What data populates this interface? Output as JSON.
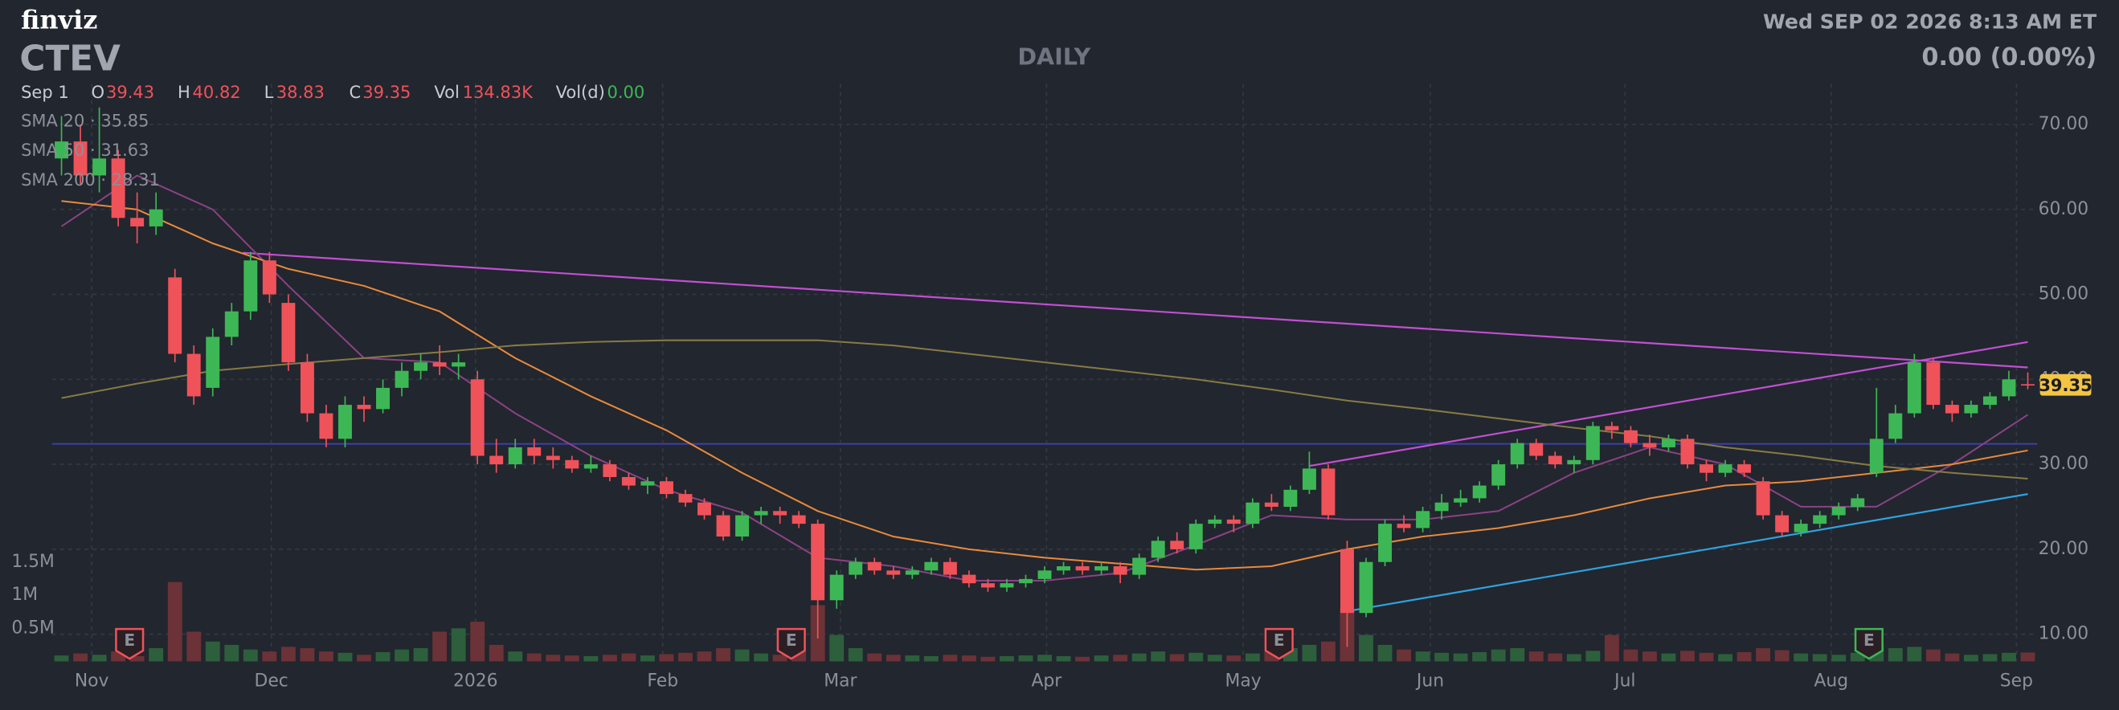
{
  "chart_data": {
    "type": "candlestick",
    "logo": "finviz",
    "title": "CTEV",
    "subtitle": "DAILY",
    "datetime": "Wed SEP 02 2026 8:13 AM ET",
    "change": "0.00 (0.00%)",
    "legend": {
      "date": "Sep 1",
      "labels": [
        "O",
        "H",
        "L",
        "C"
      ],
      "vol_label": "Vol",
      "vol_value": "134.83K",
      "vold_label": "Vol(d)",
      "vold_value": "0.00",
      "separator": "·"
    },
    "up_color": "#3db755",
    "down_color": "#f0525a",
    "volume_colors": {
      "up": "#2d5f3d",
      "down": "#6b3237"
    },
    "xlim": [
      -0.5,
      104.5
    ],
    "xticks": [
      {
        "value": 1.6,
        "label": "Nov"
      },
      {
        "value": 11.1,
        "label": "Dec"
      },
      {
        "value": 21.9,
        "label": "2026"
      },
      {
        "value": 31.8,
        "label": "Feb"
      },
      {
        "value": 41.2,
        "label": "Mar"
      },
      {
        "value": 52.1,
        "label": "Apr"
      },
      {
        "value": 62.5,
        "label": "May"
      },
      {
        "value": 72.4,
        "label": "Jun"
      },
      {
        "value": 82.7,
        "label": "Jul"
      },
      {
        "value": 93.6,
        "label": "Aug"
      },
      {
        "value": 103.4,
        "label": "Sep"
      }
    ],
    "ylim": [
      6.8,
      74.8
    ],
    "yticks": [
      {
        "value": 10,
        "label": "10.00"
      },
      {
        "value": 20,
        "label": "20.00"
      },
      {
        "value": 30,
        "label": "30.00"
      },
      {
        "value": 40,
        "label": "40.00"
      },
      {
        "value": 50,
        "label": "50.00"
      },
      {
        "value": 60,
        "label": "60.00"
      },
      {
        "value": 70,
        "label": "70.00"
      }
    ],
    "grid": true,
    "candles": [
      [
        66,
        71,
        64,
        68
      ],
      [
        68,
        70,
        63,
        64
      ],
      [
        64,
        72,
        62,
        66
      ],
      [
        66,
        67,
        58,
        59
      ],
      [
        59,
        62,
        56,
        58
      ],
      [
        58,
        62,
        57,
        60
      ],
      [
        52,
        53,
        42,
        43
      ],
      [
        43,
        44,
        37,
        38
      ],
      [
        39,
        46,
        38,
        45
      ],
      [
        45,
        49,
        44,
        48
      ],
      [
        48,
        55,
        47,
        54
      ],
      [
        54,
        55,
        49,
        50
      ],
      [
        49,
        50,
        41,
        42
      ],
      [
        42,
        43,
        35,
        36
      ],
      [
        36,
        37,
        32,
        33
      ],
      [
        33,
        38,
        32,
        37
      ],
      [
        37,
        38,
        35,
        36.5
      ],
      [
        36.5,
        40,
        36,
        39
      ],
      [
        39,
        42,
        38,
        41
      ],
      [
        41,
        43,
        40,
        42
      ],
      [
        42,
        44,
        40.5,
        41.5
      ],
      [
        41.5,
        43,
        40,
        42
      ],
      [
        40,
        41,
        30,
        31
      ],
      [
        31,
        33,
        29,
        30
      ],
      [
        30,
        33,
        29.5,
        32
      ],
      [
        32,
        33,
        30,
        31
      ],
      [
        31,
        32,
        29.5,
        30.5
      ],
      [
        30.5,
        31,
        29,
        29.5
      ],
      [
        29.5,
        31,
        29,
        30
      ],
      [
        30,
        30.5,
        28,
        28.5
      ],
      [
        28.5,
        29,
        27,
        27.5
      ],
      [
        27.5,
        28.5,
        26.5,
        28
      ],
      [
        28,
        28.5,
        26,
        26.5
      ],
      [
        26.5,
        27,
        25,
        25.5
      ],
      [
        25.5,
        26,
        23.5,
        24
      ],
      [
        24,
        24.5,
        21,
        21.5
      ],
      [
        21.5,
        24.5,
        21,
        24
      ],
      [
        24,
        25,
        23,
        24.5
      ],
      [
        24.5,
        25,
        23,
        24
      ],
      [
        24,
        24.5,
        22.5,
        23
      ],
      [
        23,
        23.5,
        9.5,
        14
      ],
      [
        14,
        17.5,
        13,
        17
      ],
      [
        17,
        19,
        16.5,
        18.5
      ],
      [
        18.5,
        19,
        17,
        17.5
      ],
      [
        17.5,
        18,
        16.5,
        17
      ],
      [
        17,
        18,
        16.5,
        17.5
      ],
      [
        17.5,
        19,
        17,
        18.5
      ],
      [
        18.5,
        19,
        16.5,
        17
      ],
      [
        17,
        17.5,
        15.5,
        16
      ],
      [
        16,
        16.5,
        15,
        15.5
      ],
      [
        15.5,
        16.5,
        15,
        16
      ],
      [
        16,
        17,
        15.5,
        16.5
      ],
      [
        16.5,
        18,
        16,
        17.5
      ],
      [
        17.5,
        18.5,
        17,
        18
      ],
      [
        18,
        18.5,
        17,
        17.5
      ],
      [
        17.5,
        18.5,
        17,
        18
      ],
      [
        18,
        18.5,
        16,
        17
      ],
      [
        17,
        19.5,
        16.5,
        19
      ],
      [
        19,
        21.5,
        18.5,
        21
      ],
      [
        21,
        22,
        19.5,
        20
      ],
      [
        20,
        23.5,
        19.5,
        23
      ],
      [
        23,
        24,
        22.5,
        23.5
      ],
      [
        23.5,
        24,
        22,
        23
      ],
      [
        23,
        26,
        22.5,
        25.5
      ],
      [
        25.5,
        26.5,
        24.5,
        25
      ],
      [
        25,
        27.5,
        24.5,
        27
      ],
      [
        27,
        31.5,
        26.5,
        29.5
      ],
      [
        29.5,
        30,
        23.5,
        24
      ],
      [
        20,
        21,
        8.5,
        12.5
      ],
      [
        12.5,
        19,
        12,
        18.5
      ],
      [
        18.5,
        23.5,
        18,
        23
      ],
      [
        23,
        24,
        22,
        22.5
      ],
      [
        22.5,
        25,
        22,
        24.5
      ],
      [
        24.5,
        26.5,
        23.5,
        25.5
      ],
      [
        25.5,
        27,
        25,
        26
      ],
      [
        26,
        28,
        25.5,
        27.5
      ],
      [
        27.5,
        30.5,
        27,
        30
      ],
      [
        30,
        33,
        29.5,
        32.5
      ],
      [
        32.5,
        33,
        30.5,
        31
      ],
      [
        31,
        31.5,
        29.5,
        30
      ],
      [
        30,
        31,
        29,
        30.5
      ],
      [
        30.5,
        35,
        30,
        34.5
      ],
      [
        34.5,
        35,
        33,
        34
      ],
      [
        34,
        34.5,
        32,
        32.5
      ],
      [
        32.5,
        33.5,
        31,
        32
      ],
      [
        32,
        33.5,
        31.5,
        33
      ],
      [
        33,
        33.5,
        29.5,
        30
      ],
      [
        30,
        30.5,
        28,
        29
      ],
      [
        29,
        30.5,
        28.5,
        30
      ],
      [
        30,
        30.5,
        28.5,
        29
      ],
      [
        28,
        28.5,
        23.5,
        24
      ],
      [
        24,
        24.5,
        21.5,
        22
      ],
      [
        22,
        23.5,
        21.5,
        23
      ],
      [
        23,
        24.5,
        22.5,
        24
      ],
      [
        24,
        25.5,
        23.5,
        25
      ],
      [
        25,
        26.5,
        24.5,
        26
      ],
      [
        29,
        39,
        28.5,
        33
      ],
      [
        33,
        37,
        32.5,
        36
      ],
      [
        36,
        43,
        35.5,
        42
      ],
      [
        42,
        42.5,
        36.5,
        37
      ],
      [
        37,
        37.5,
        35,
        36
      ],
      [
        36,
        37.5,
        35.5,
        37
      ],
      [
        37,
        38.5,
        36.5,
        38
      ],
      [
        38,
        41,
        37.5,
        40
      ],
      [
        39.43,
        40.82,
        38.83,
        39.35
      ]
    ],
    "volume": [
      90000,
      120000,
      100000,
      150000,
      80000,
      200000,
      1200000,
      450000,
      300000,
      250000,
      180000,
      150000,
      220000,
      200000,
      150000,
      130000,
      100000,
      140000,
      180000,
      200000,
      450000,
      500000,
      600000,
      250000,
      150000,
      120000,
      100000,
      90000,
      80000,
      100000,
      120000,
      90000,
      110000,
      130000,
      150000,
      200000,
      180000,
      120000,
      100000,
      150000,
      850000,
      400000,
      200000,
      120000,
      100000,
      90000,
      80000,
      100000,
      90000,
      70000,
      80000,
      90000,
      100000,
      80000,
      70000,
      90000,
      100000,
      120000,
      150000,
      110000,
      130000,
      100000,
      90000,
      120000,
      150000,
      200000,
      250000,
      300000,
      800000,
      400000,
      250000,
      180000,
      150000,
      130000,
      120000,
      140000,
      180000,
      200000,
      150000,
      120000,
      110000,
      160000,
      400000,
      180000,
      150000,
      120000,
      160000,
      130000,
      110000,
      140000,
      200000,
      170000,
      120000,
      110000,
      100000,
      130000,
      250000,
      200000,
      220000,
      180000,
      120000,
      100000,
      110000,
      130000,
      134830
    ],
    "vol_ylim": [
      0,
      1500000
    ],
    "vol_ticks": [
      {
        "value": 500000,
        "label": "0.5M"
      },
      {
        "value": 1000000,
        "label": "1M"
      },
      {
        "value": 1500000,
        "label": "1.5M"
      }
    ],
    "sma_x": [
      0,
      4,
      8,
      12,
      16,
      20,
      24,
      28,
      32,
      36,
      40,
      44,
      48,
      52,
      56,
      60,
      64,
      68,
      72,
      76,
      80,
      84,
      88,
      92,
      96,
      100,
      104
    ],
    "series": [
      {
        "name": "SMA 20",
        "color": "#8a4286",
        "values": [
          58,
          64,
          60,
          51,
          42.5,
          42,
          36,
          31,
          27,
          24.3,
          19,
          18,
          16.3,
          16.3,
          17.2,
          20.5,
          24,
          23.5,
          23.5,
          24.5,
          29,
          32,
          30,
          25,
          25,
          30,
          35.85
        ]
      },
      {
        "name": "SMA 50",
        "color": "#e98a3c",
        "values": [
          61,
          60,
          56,
          53,
          51,
          48,
          42.5,
          38,
          34,
          29,
          24.5,
          21.5,
          20,
          19,
          18.3,
          17.6,
          18,
          20,
          21.5,
          22.5,
          24,
          26,
          27.5,
          28,
          29,
          30,
          31.63
        ]
      },
      {
        "name": "SMA 200",
        "color": "#867b45",
        "values": [
          37.8,
          39.5,
          41,
          41.8,
          42.5,
          43.2,
          44,
          44.4,
          44.6,
          44.6,
          44.6,
          44,
          43,
          42,
          41,
          40,
          38.8,
          37.5,
          36.5,
          35.4,
          34.3,
          33.3,
          32,
          31,
          29.8,
          29,
          28.31
        ]
      }
    ],
    "trendlines": [
      {
        "color": "#3b3f9e",
        "x": [
          -0.5,
          104.5
        ],
        "y": [
          32.4,
          32.4
        ]
      },
      {
        "color": "#c24fd4",
        "x": [
          9.6,
          104
        ],
        "y": [
          54.9,
          41.4
        ]
      },
      {
        "color": "#c24fd4",
        "x": [
          66,
          104
        ],
        "y": [
          29.8,
          44.4
        ]
      },
      {
        "color": "#2ea3e0",
        "x": [
          68,
          104
        ],
        "y": [
          12.7,
          26.5
        ]
      }
    ],
    "events": [
      {
        "x": 3.6,
        "label": "E",
        "color": "#f0525a"
      },
      {
        "x": 38.6,
        "label": "E",
        "color": "#f0525a"
      },
      {
        "x": 64.4,
        "label": "E",
        "color": "#f0525a"
      },
      {
        "x": 95.6,
        "label": "E",
        "color": "#3db755"
      }
    ]
  }
}
